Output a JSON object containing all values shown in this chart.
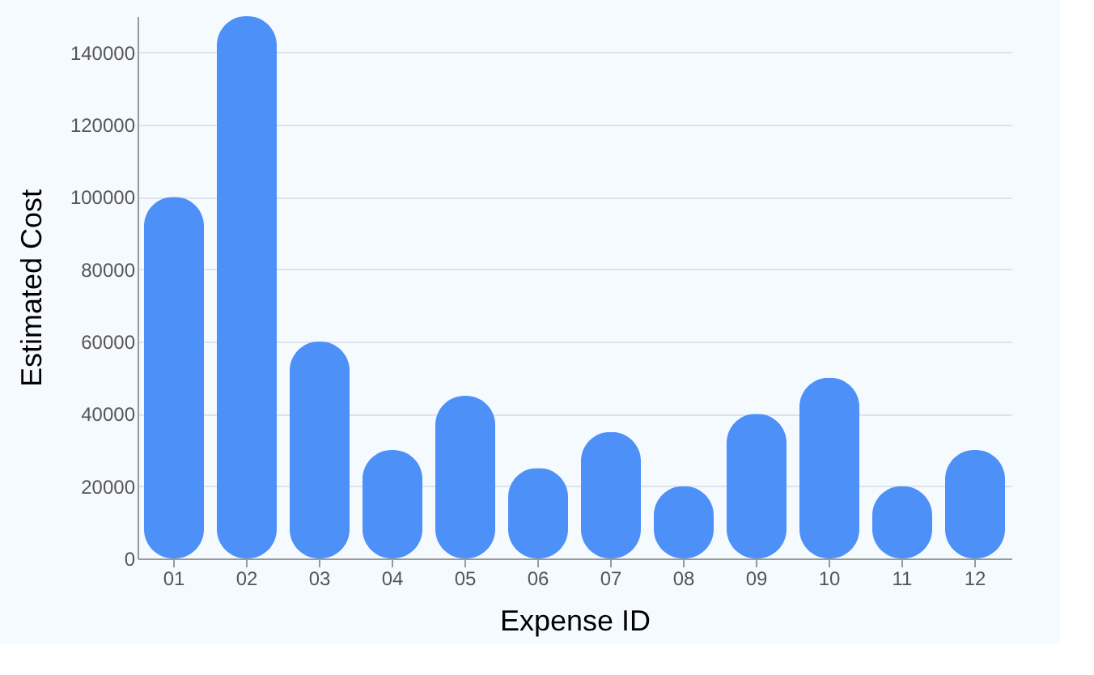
{
  "chart_data": {
    "type": "bar",
    "xlabel": "Expense ID",
    "ylabel": "Estimated Cost",
    "categories": [
      "01",
      "02",
      "03",
      "04",
      "05",
      "06",
      "07",
      "08",
      "09",
      "10",
      "11",
      "12"
    ],
    "values": [
      100000,
      150000,
      60000,
      30000,
      45000,
      25000,
      35000,
      20000,
      40000,
      50000,
      20000,
      30000
    ],
    "color": "#4d90f7",
    "ylim": [
      0,
      150000
    ],
    "yticks": [
      0,
      20000,
      40000,
      60000,
      80000,
      100000,
      120000,
      140000
    ],
    "grid": "y"
  }
}
